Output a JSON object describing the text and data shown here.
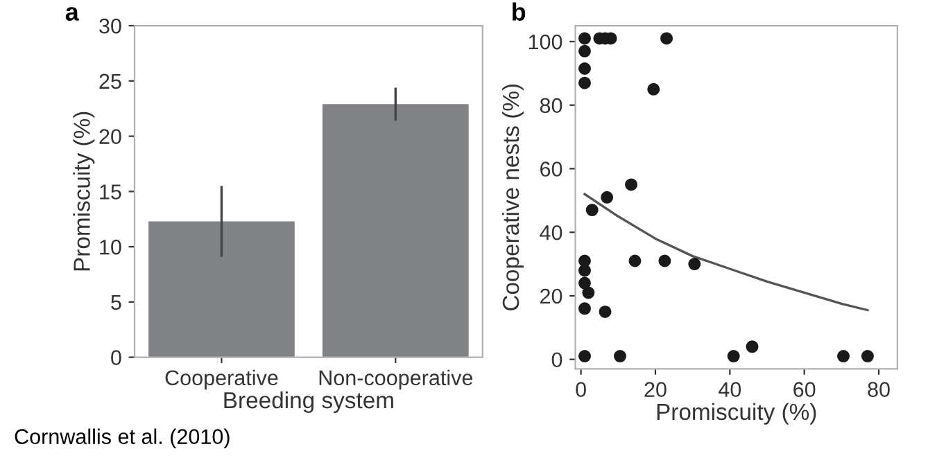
{
  "chart_data": [
    {
      "type": "bar",
      "title": "a",
      "categories": [
        "Cooperative",
        "Non-cooperative"
      ],
      "values": [
        12.3,
        22.9
      ],
      "errors": [
        [
          9.1,
          15.5
        ],
        [
          21.4,
          24.4
        ]
      ],
      "color": "#808285",
      "xlabel": "Breeding system",
      "ylabel": "Promiscuity (%)",
      "ylim": [
        0,
        30
      ],
      "yticks": [
        0,
        5,
        10,
        15,
        20,
        25,
        30
      ],
      "grid": false,
      "annotations": [
        "Cornwallis et al. (2010)"
      ]
    },
    {
      "type": "scatter",
      "title": "b",
      "xlabel": "Promiscuity (%)",
      "ylabel": "Cooperative nests (%)",
      "xlim": [
        -1.5,
        85
      ],
      "ylim": [
        -3,
        105
      ],
      "xticks": [
        0,
        20,
        40,
        60,
        80
      ],
      "yticks": [
        0,
        20,
        40,
        60,
        80,
        100
      ],
      "grid": false,
      "series": [
        {
          "type": "scatter",
          "marker": "circle",
          "color": "#1a1a1a",
          "x": [
            1,
            1,
            1,
            1,
            5,
            6.5,
            8,
            23,
            19.5,
            13.5,
            7,
            3,
            1,
            1,
            1,
            2,
            1,
            6.5,
            14.5,
            22.5,
            30.5,
            1,
            10.5,
            41,
            46,
            70.5,
            77
          ],
          "values": [
            101,
            97,
            91.5,
            87,
            101,
            101,
            101,
            101,
            85,
            55,
            51,
            47,
            31,
            28,
            24,
            21,
            16,
            15,
            31,
            31,
            30,
            1,
            1,
            1,
            4,
            1,
            1
          ]
        },
        {
          "type": "line",
          "marker": "none",
          "color": "#555555",
          "line_style": "solid",
          "x": [
            1,
            10,
            20,
            30,
            40,
            50,
            60,
            70,
            77
          ],
          "values": [
            52,
            45,
            38,
            32.5,
            28.5,
            24.5,
            21,
            17.5,
            15.5
          ]
        }
      ]
    }
  ]
}
